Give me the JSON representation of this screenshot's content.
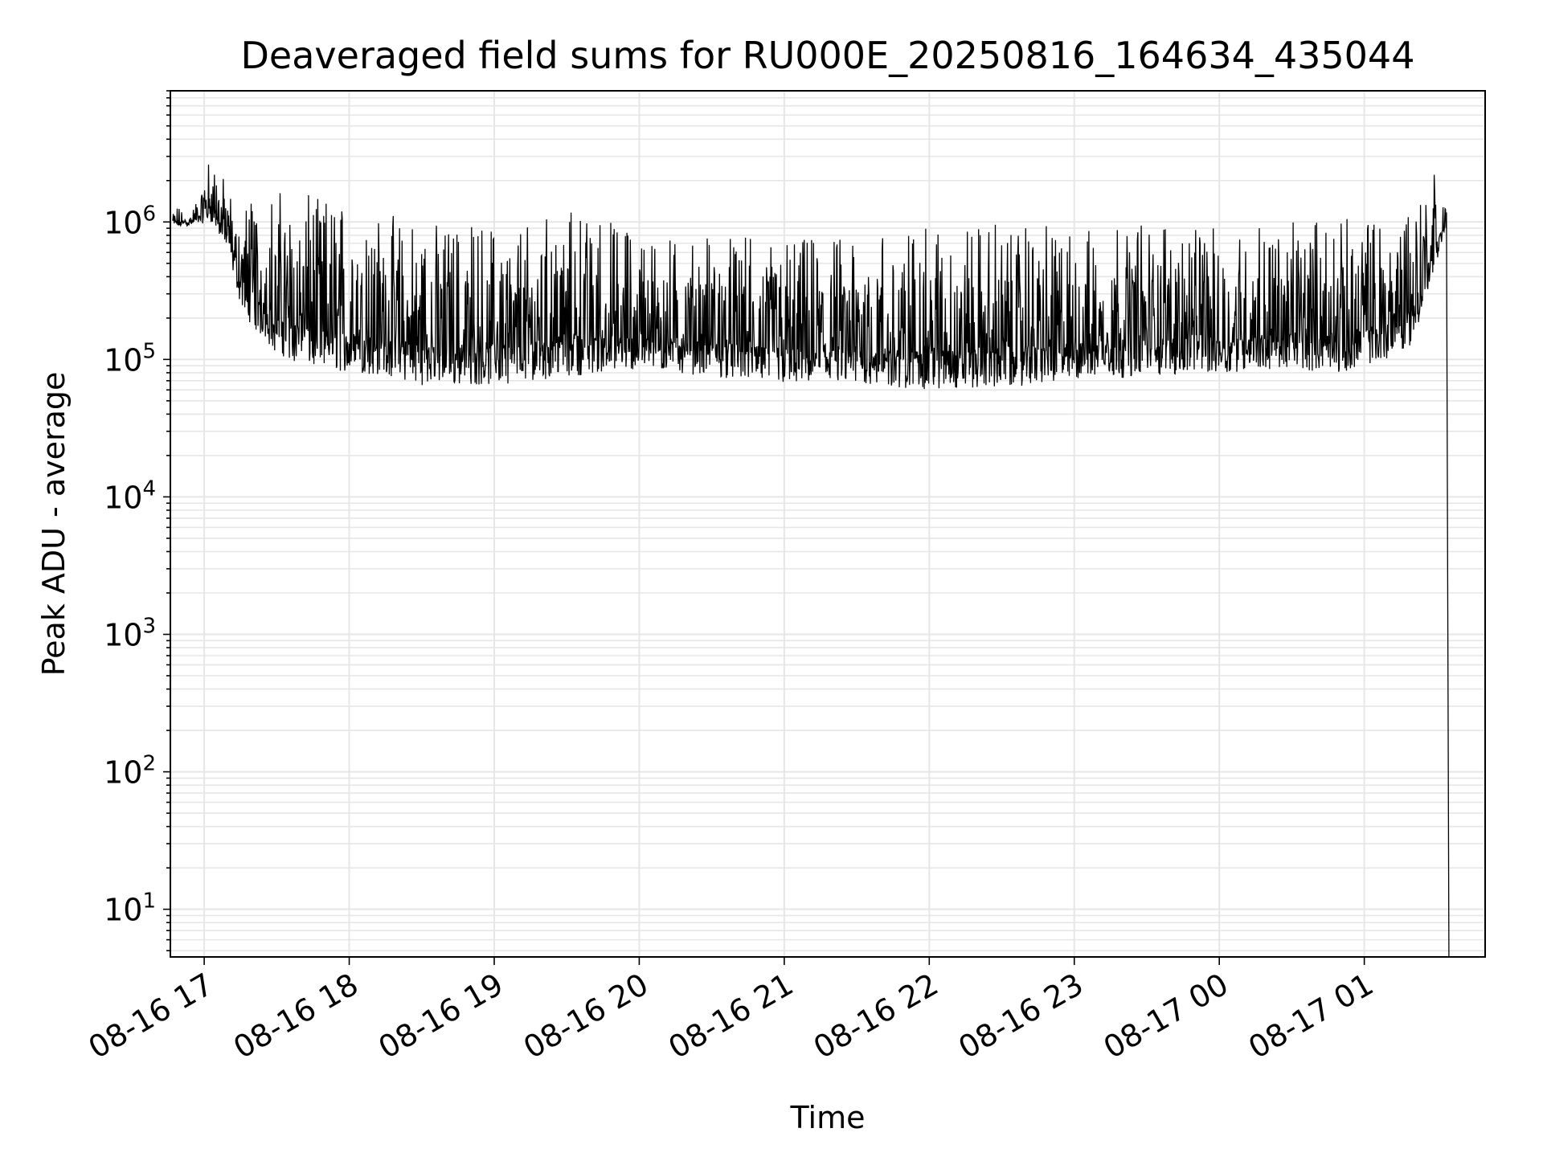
{
  "chart_data": {
    "type": "line",
    "title": "Deaveraged field sums for RU000E_20250816_164634_435044",
    "xlabel": "Time",
    "ylabel": "Peak ADU - average",
    "xscale": "time",
    "yscale": "log",
    "xlim": [
      "2025-08-16 16:46",
      "2025-08-17 01:50"
    ],
    "ylim": [
      4.5,
      9000000
    ],
    "x_ticks": [
      "2025-08-16 17:00",
      "2025-08-16 18:00",
      "2025-08-16 19:00",
      "2025-08-16 20:00",
      "2025-08-16 21:00",
      "2025-08-16 22:00",
      "2025-08-16 23:00",
      "2025-08-17 00:00",
      "2025-08-17 01:00"
    ],
    "x_tick_labels": [
      "08-16 17",
      "08-16 18",
      "08-16 19",
      "08-16 20",
      "08-16 21",
      "08-16 22",
      "08-16 23",
      "08-17 00",
      "08-17 01"
    ],
    "y_ticks": [
      10,
      100,
      1000,
      10000,
      100000,
      1000000
    ],
    "y_tick_exponents": [
      "1",
      "2",
      "3",
      "4",
      "5",
      "6"
    ],
    "y_tick_base": "10",
    "grid": true,
    "line_color": "#000000",
    "grid_color": "#e6e6e6",
    "series": [
      {
        "name": "",
        "envelope": {
          "x": [
            "2025-08-16 16:47",
            "2025-08-16 16:55",
            "2025-08-16 17:03",
            "2025-08-16 17:10",
            "2025-08-16 17:15",
            "2025-08-16 17:20",
            "2025-08-16 17:30",
            "2025-08-16 17:45",
            "2025-08-16 18:00",
            "2025-08-16 18:15",
            "2025-08-16 18:30",
            "2025-08-16 19:00",
            "2025-08-16 19:30",
            "2025-08-16 20:00",
            "2025-08-16 20:30",
            "2025-08-16 21:00",
            "2025-08-16 21:30",
            "2025-08-16 22:00",
            "2025-08-16 22:30",
            "2025-08-16 23:00",
            "2025-08-16 23:30",
            "2025-08-17 00:00",
            "2025-08-17 00:30",
            "2025-08-17 00:50",
            "2025-08-17 01:00",
            "2025-08-17 01:10",
            "2025-08-17 01:20",
            "2025-08-17 01:30",
            "2025-08-17 01:34",
            "2025-08-17 01:35"
          ],
          "low": [
            900000,
            950000,
            1000000,
            600000,
            250000,
            170000,
            110000,
            85000,
            80000,
            75000,
            65000,
            65000,
            75000,
            85000,
            75000,
            65000,
            65000,
            60000,
            62000,
            70000,
            75000,
            80000,
            85000,
            80000,
            90000,
            100000,
            130000,
            500000,
            900000,
            5
          ],
          "high": [
            1300000,
            1200000,
            3500000,
            1700000,
            1500000,
            1650000,
            1700000,
            1550000,
            1400000,
            1200000,
            1000000,
            1000000,
            1300000,
            900000,
            800000,
            750000,
            800000,
            900000,
            1000000,
            900000,
            1000000,
            900000,
            1000000,
            1100000,
            1100000,
            1200000,
            1500000,
            2500000,
            1500000,
            5
          ]
        }
      }
    ]
  }
}
